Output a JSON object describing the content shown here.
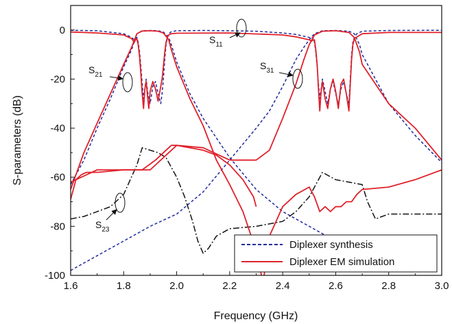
{
  "chart_data": {
    "type": "line",
    "xlabel": "Frequency (GHz)",
    "ylabel": "S-parameters (dB)",
    "xlim": [
      1.6,
      3.0
    ],
    "ylim": [
      -100,
      10
    ],
    "x_ticks": [
      "1.6",
      "1.8",
      "2.0",
      "2.2",
      "2.4",
      "2.6",
      "2.8",
      "3.0"
    ],
    "y_ticks": [
      "0",
      "-20",
      "-40",
      "-60",
      "-80",
      "-100"
    ],
    "grid": false,
    "legend_position": "bottom-right",
    "legend": [
      {
        "label": "Diplexer synthesis",
        "color": "#1f2a99",
        "dash": "dashed"
      },
      {
        "label": "Diplexer EM simulation",
        "color": "#e0202a",
        "dash": "solid"
      }
    ],
    "series": [
      {
        "name": "Diplexer synthesis",
        "id": "S11-synthesis",
        "color": "#1f2a99",
        "style": "dashed",
        "x": [
          1.6,
          1.7,
          1.8,
          1.83,
          1.84,
          1.845,
          1.85,
          1.855,
          1.86,
          1.865,
          1.87,
          1.875,
          1.88,
          1.885,
          1.89,
          1.9,
          1.91,
          1.92,
          1.93,
          1.94,
          1.945,
          1.95,
          1.955,
          1.96,
          1.965,
          1.97,
          1.98,
          2.0,
          2.1,
          2.2,
          2.3,
          2.4,
          2.45,
          2.5,
          2.505,
          2.51,
          2.515,
          2.52,
          2.525,
          2.53,
          2.535,
          2.54,
          2.545,
          2.55,
          2.56,
          2.57,
          2.58,
          2.59,
          2.6,
          2.61,
          2.62,
          2.63,
          2.64,
          2.65,
          2.655,
          2.66,
          2.665,
          2.67,
          2.68,
          2.7,
          2.8,
          3.0
        ],
        "y": [
          -0.1,
          -0.3,
          -1.5,
          -3,
          -4,
          -3.5,
          -3,
          -5,
          -9,
          -15,
          -22,
          -28,
          -24,
          -20,
          -25,
          -30,
          -23,
          -21,
          -26,
          -30,
          -26,
          -20,
          -12,
          -6,
          -3,
          -1.5,
          -0.7,
          -0.3,
          -0.2,
          -0.3,
          -0.5,
          -1.2,
          -1.8,
          -3,
          -3.5,
          -3.3,
          -3,
          -5,
          -9,
          -15,
          -22,
          -28,
          -24,
          -20,
          -25,
          -30,
          -24,
          -21,
          -26,
          -30,
          -24,
          -21,
          -26,
          -30,
          -20,
          -10,
          -5,
          -3,
          -1.5,
          -0.5,
          -0.2,
          -0.1
        ]
      },
      {
        "name": "Diplexer synthesis",
        "id": "S21-synthesis",
        "color": "#1f2a99",
        "style": "dashed",
        "x": [
          1.6,
          1.65,
          1.7,
          1.75,
          1.8,
          1.83,
          1.85,
          1.87,
          1.9,
          1.93,
          1.95,
          1.97,
          1.98,
          2.0,
          2.05,
          2.1,
          2.2,
          2.3,
          2.4,
          2.5,
          2.6,
          2.7
        ],
        "y": [
          -63,
          -53,
          -40,
          -28,
          -15,
          -8,
          -1.5,
          -0.3,
          -0.2,
          -0.3,
          -0.8,
          -3,
          -6,
          -13,
          -26,
          -36,
          -52,
          -65,
          -74,
          -80,
          -86,
          -90
        ]
      },
      {
        "name": "Diplexer synthesis",
        "id": "S31-synthesis",
        "color": "#1f2a99",
        "style": "dashed",
        "x": [
          1.6,
          1.7,
          1.8,
          1.9,
          2.0,
          2.1,
          2.2,
          2.3,
          2.35,
          2.4,
          2.45,
          2.48,
          2.5,
          2.52,
          2.55,
          2.6,
          2.65,
          2.67,
          2.69,
          2.7,
          2.75,
          2.8,
          2.9,
          3.0
        ],
        "y": [
          -98,
          -92,
          -86,
          -80,
          -75,
          -66,
          -53,
          -40,
          -33,
          -23,
          -12,
          -7,
          -4,
          -1.5,
          -0.3,
          -0.2,
          -0.5,
          -1.5,
          -6,
          -10,
          -20,
          -30,
          -43,
          -54
        ]
      },
      {
        "name": "",
        "id": "S23",
        "color": "#111111",
        "style": "dashdot",
        "x": [
          1.6,
          1.65,
          1.7,
          1.75,
          1.8,
          1.85,
          1.87,
          1.9,
          1.93,
          1.96,
          2.0,
          2.03,
          2.06,
          2.08,
          2.1,
          2.12,
          2.15,
          2.2,
          2.3,
          2.4,
          2.45,
          2.5,
          2.55,
          2.6,
          2.65,
          2.7,
          2.72,
          2.75,
          2.8,
          2.9,
          3.0
        ],
        "y": [
          -77,
          -76,
          -74,
          -72,
          -67,
          -55,
          -48,
          -49,
          -50,
          -52,
          -60,
          -68,
          -78,
          -86,
          -91,
          -89,
          -84,
          -81,
          -80,
          -78,
          -74,
          -68,
          -58,
          -61,
          -62,
          -63,
          -70,
          -77,
          -75,
          -75,
          -75
        ]
      },
      {
        "name": "Diplexer EM simulation",
        "id": "S11-EM",
        "color": "#e0202a",
        "style": "solid",
        "x": [
          1.6,
          1.7,
          1.8,
          1.83,
          1.84,
          1.845,
          1.85,
          1.855,
          1.86,
          1.865,
          1.87,
          1.875,
          1.88,
          1.885,
          1.89,
          1.895,
          1.9,
          1.91,
          1.92,
          1.93,
          1.94,
          1.945,
          1.95,
          1.955,
          1.96,
          1.965,
          1.97,
          1.98,
          2.0,
          2.2,
          2.4,
          2.45,
          2.5,
          2.51,
          2.515,
          2.52,
          2.525,
          2.53,
          2.535,
          2.54,
          2.545,
          2.55,
          2.56,
          2.57,
          2.58,
          2.59,
          2.6,
          2.61,
          2.62,
          2.63,
          2.64,
          2.65,
          2.655,
          2.66,
          2.665,
          2.67,
          2.7,
          2.8,
          3.0
        ],
        "y": [
          -0.8,
          -1.2,
          -2,
          -3.5,
          -5,
          -4,
          -3.5,
          -6,
          -11,
          -18,
          -26,
          -32,
          -24,
          -21,
          -27,
          -32,
          -25,
          -21,
          -24,
          -29,
          -23,
          -20,
          -15,
          -9,
          -5,
          -3,
          -2,
          -1.5,
          -1.3,
          -1.2,
          -2,
          -2.8,
          -4,
          -4.5,
          -4,
          -4,
          -8,
          -14,
          -24,
          -33,
          -25,
          -21,
          -28,
          -32,
          -24,
          -20,
          -25,
          -32,
          -22,
          -20,
          -26,
          -33,
          -22,
          -12,
          -6,
          -3.5,
          -1.5,
          -1,
          -1
        ]
      },
      {
        "name": "Diplexer EM simulation",
        "id": "S21-EM",
        "color": "#e0202a",
        "style": "solid",
        "x": [
          1.6,
          1.65,
          1.7,
          1.75,
          1.8,
          1.83,
          1.85,
          1.87,
          1.9,
          1.93,
          1.95,
          1.97,
          1.98,
          2.0,
          2.05,
          2.1,
          2.15,
          2.2,
          2.25,
          2.3,
          2.32
        ],
        "y": [
          -65,
          -50,
          -38,
          -26,
          -14,
          -7,
          -1.5,
          -0.4,
          -0.3,
          -0.5,
          -1.2,
          -4,
          -8,
          -15,
          -28,
          -39,
          -53,
          -63,
          -74,
          -90,
          -100
        ]
      },
      {
        "name": "Diplexer EM simulation",
        "id": "S31-EM",
        "color": "#e0202a",
        "style": "solid",
        "x": [
          1.6,
          1.7,
          1.8,
          1.9,
          2.0,
          2.1,
          2.2,
          2.3,
          2.35,
          2.4,
          2.45,
          2.48,
          2.5,
          2.52,
          2.55,
          2.6,
          2.65,
          2.67,
          2.69,
          2.7,
          2.75,
          2.8,
          2.9,
          3.0
        ],
        "y": [
          -62,
          -57,
          -57,
          -57,
          -47,
          -48,
          -53,
          -53,
          -49,
          -36,
          -22,
          -12,
          -6,
          -2,
          -0.5,
          -0.3,
          -1,
          -3,
          -9,
          -14,
          -22,
          -30,
          -40,
          -53
        ]
      },
      {
        "name": "Diplexer EM simulation",
        "id": "S23-EM",
        "color": "#e0202a",
        "style": "solid",
        "x": [
          1.6,
          1.62,
          1.64,
          1.66,
          1.7,
          1.8,
          1.87,
          1.92,
          1.96,
          1.98,
          2.0,
          2.05,
          2.1,
          2.15,
          2.2,
          2.25,
          2.29,
          2.3
        ],
        "y": [
          -69,
          -61,
          -59,
          -58,
          -58,
          -57,
          -57,
          -53,
          -49,
          -47,
          -47,
          -48,
          -49,
          -51,
          -55,
          -61,
          -68,
          -72
        ]
      },
      {
        "name": "Diplexer EM simulation",
        "id": "S23-EM-b",
        "color": "#e0202a",
        "style": "solid",
        "x": [
          2.33,
          2.35,
          2.4,
          2.45,
          2.5,
          2.52,
          2.54,
          2.56,
          2.58,
          2.6,
          2.62,
          2.64,
          2.66,
          2.68,
          2.7,
          2.8,
          2.9,
          3.0
        ],
        "y": [
          -100,
          -84,
          -72,
          -67,
          -64,
          -68,
          -74,
          -72,
          -74,
          -72,
          -72,
          -70,
          -70,
          -67,
          -65,
          -64,
          -61,
          -57
        ]
      }
    ],
    "annotations": [
      {
        "id": "S11",
        "label": "S",
        "sub": "11"
      },
      {
        "id": "S21",
        "label": "S",
        "sub": "21"
      },
      {
        "id": "S31",
        "label": "S",
        "sub": "31"
      },
      {
        "id": "S23",
        "label": "S",
        "sub": "23"
      }
    ]
  }
}
